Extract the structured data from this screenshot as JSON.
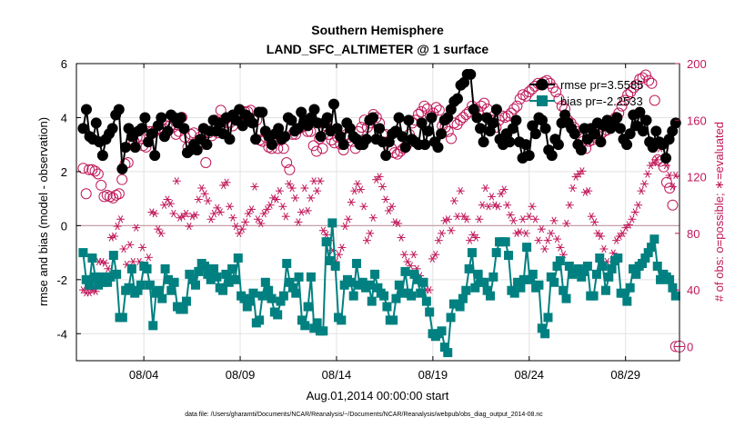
{
  "chart_data": {
    "type": "line",
    "title": "Southern Hemisphere",
    "subtitle": "LAND_SFC_ALTIMETER @ 1 surface",
    "xlabel": "Aug.01,2014 00:00:00 start",
    "ylabel": "rmse and bias (model - observation)",
    "y2label": "# of obs: o=possible; ∗=evaluated",
    "footnote": "data file: /Users/gharamti/Documents/NCAR/Reanalysis/~/Documents/NCAR/Reanalysis/webpub/obs_diag_output_2014-08.nc",
    "xlim": [
      0.5,
      31.8
    ],
    "ylim": [
      -5,
      6
    ],
    "y2lim": [
      -10,
      200
    ],
    "x_ticks": [
      4,
      9,
      14,
      19,
      24,
      29
    ],
    "x_tick_labels": [
      "08/04",
      "08/09",
      "08/14",
      "08/19",
      "08/24",
      "08/29"
    ],
    "y_ticks": [
      -4,
      -2,
      0,
      2,
      4,
      6
    ],
    "y_tick_labels": [
      "-4",
      "-2",
      "0",
      "2",
      "4",
      "6"
    ],
    "y2_ticks": [
      0,
      40,
      80,
      120,
      160,
      200
    ],
    "y2_tick_labels": [
      "0",
      "40",
      "80",
      "120",
      "160",
      "200"
    ],
    "grid": true,
    "legend_position": "top-right",
    "colors": {
      "rmse": "#000000",
      "bias": "#008080",
      "obs": "#c0185a",
      "zero_line": "#c8a0a8"
    },
    "series": [
      {
        "name": "rmse pr=3.5585",
        "axis": "left",
        "values": [
          3.6,
          4.3,
          3.3,
          3.2,
          3.8,
          3.1,
          2.6,
          3.2,
          3.4,
          3.6,
          4.1,
          4.3,
          2.1,
          2.9,
          3.6,
          3.3,
          2.9,
          3.5,
          3.6,
          4.0,
          3.1,
          3.4,
          2.6,
          3.7,
          4.0,
          3.3,
          3.5,
          4.1,
          4.0,
          3.8,
          4.0,
          3.6,
          2.7,
          2.8,
          3.0,
          2.8,
          3.2,
          3.6,
          3.0,
          3.5,
          3.9,
          3.5,
          3.8,
          3.4,
          4.0,
          3.2,
          4.1,
          3.9,
          4.3,
          3.7,
          4.1,
          4.0,
          3.8,
          3.2,
          4.2,
          4.2,
          3.5,
          3.3,
          3.0,
          3.4,
          3.6,
          3.2,
          3.3,
          4.0,
          3.9,
          3.5,
          3.6,
          4.2,
          3.9,
          3.7,
          4.0,
          4.3,
          3.8,
          3.3,
          3.8,
          4.0,
          3.5,
          4.5,
          3.6,
          3.3,
          3.0,
          3.8,
          3.6,
          3.3,
          3.2,
          3.0,
          3.0,
          3.2,
          3.9,
          4.0,
          3.2,
          3.6,
          3.1,
          2.6,
          3.1,
          3.4,
          3.5,
          4.0,
          3.3,
          2.9,
          3.9,
          3.2,
          3.1,
          3.0,
          3.8,
          3.0,
          3.5,
          4.0,
          3.1,
          2.9,
          3.4,
          3.9,
          4.0,
          4.3,
          4.6,
          4.7,
          5.2,
          5.3,
          5.6,
          5.6,
          4.3,
          4.0,
          3.6,
          3.1,
          4.0,
          3.5,
          3.8,
          4.3,
          3.2,
          3.0,
          3.4,
          3.1,
          3.6,
          3.9,
          3.1,
          2.5,
          3.0,
          2.6,
          3.7,
          3.4,
          4.0,
          3.9,
          3.6,
          2.8,
          2.6,
          3.2,
          3.0,
          3.8,
          4.1,
          3.8,
          3.6,
          3.4,
          3.0,
          2.8,
          3.6,
          3.2,
          3.6,
          3.4,
          3.8,
          3.1,
          3.7,
          3.9,
          3.6,
          3.7,
          4.0,
          3.6,
          3.2,
          3.0,
          3.4,
          4.1,
          3.7,
          4.2,
          3.5,
          3.9,
          3.1,
          2.9,
          3.5,
          3.1,
          3.0,
          2.5,
          3.2,
          3.5,
          3.8
        ]
      },
      {
        "name": "bias pr=-2.2533",
        "axis": "left",
        "values": [
          -1.0,
          -2.0,
          -2.2,
          -1.2,
          -1.9,
          -2.2,
          -1.9,
          -2.1,
          -2.1,
          -1.9,
          -1.1,
          -1.8,
          -3.4,
          -3.4,
          -2.4,
          -2.3,
          -1.6,
          -2.5,
          -2.4,
          -2.2,
          -1.5,
          -1.6,
          -2.2,
          -3.7,
          -2.5,
          -2.4,
          -2.7,
          -1.6,
          -2.0,
          -2.4,
          -2.1,
          -3.0,
          -3.1,
          -3.1,
          -2.8,
          -1.8,
          -2.0,
          -2.2,
          -1.7,
          -1.4,
          -1.5,
          -1.8,
          -2.0,
          -1.6,
          -1.9,
          -2.3,
          -2.4,
          -1.8,
          -2.1,
          -1.6,
          -2.0,
          -1.2,
          -2.6,
          -2.7,
          -3.0,
          -2.8,
          -2.5,
          -3.6,
          -3.5,
          -2.6,
          -2.1,
          -2.4,
          -2.7,
          -3.2,
          -3.3,
          -2.8,
          -2.6,
          -1.4,
          -2.1,
          -2.3,
          -2.5,
          -1.9,
          -3.5,
          -3.7,
          -3.0,
          -1.9,
          -3.8,
          -3.6,
          -3.9,
          -3.9,
          -0.6,
          -1.3,
          0.1,
          -1.5,
          -3.4,
          -3.5,
          -2.2,
          -2.0,
          -2.1,
          -2.6,
          -1.4,
          -2.2,
          -2.1,
          -2.3,
          -2.2,
          -2.8,
          -1.8,
          -2.3,
          -2.5,
          -2.6,
          -3.0,
          -3.5,
          -3.5,
          -2.7,
          -2.2,
          -2.5,
          -1.7,
          -2.5,
          -2.6,
          -1.8,
          -2.0,
          -2.5,
          -2.1,
          -2.8,
          -3.2,
          -4.0,
          -4.1,
          -4.0,
          -3.9,
          -4.5,
          -4.7,
          -3.4,
          -2.9,
          -2.9,
          -3.0,
          -2.7,
          -2.4,
          -1.6,
          -1.0,
          -2.3,
          -1.8,
          -2.1,
          -2.1,
          -2.4,
          -2.6,
          -1.9,
          -1.0,
          -0.6,
          -0.6,
          -0.6,
          -1.1,
          -2.4,
          -2.5,
          -2.1,
          -2.3,
          -2.0,
          -0.8,
          -2.0,
          -1.8,
          -2.3,
          -2.2,
          -3.8,
          -4.0,
          -3.4,
          -1.9,
          -2.1,
          -1.5,
          -1.3,
          -2.4,
          -2.7,
          -1.5,
          -1.8,
          -1.7,
          -1.6,
          -1.9,
          -1.7,
          -1.5,
          -2.6,
          -2.6,
          -1.8,
          -1.2,
          -1.5,
          -2.4,
          -1.9,
          -1.6,
          -1.3,
          -1.2,
          -2.5,
          -2.5,
          -2.8,
          -2.3,
          -1.6,
          -1.8,
          -1.5,
          -1.4,
          -1.2,
          -1.0,
          -0.8,
          -0.5,
          -1.5,
          -2.0,
          -1.8,
          -1.9,
          -2.0,
          -2.3,
          -2.6
        ]
      },
      {
        "name": "possible",
        "axis": "right",
        "values": [
          126,
          108,
          125,
          125,
          124,
          122,
          114,
          106,
          107,
          106,
          105,
          107,
          108,
          118,
          129,
          130,
          145,
          145,
          148,
          147,
          142,
          141,
          152,
          152,
          152,
          154,
          154,
          154,
          156,
          156,
          155,
          150,
          152,
          162,
          148,
          141,
          150,
          151,
          141,
          148,
          143,
          130,
          151,
          149,
          160,
          151,
          167,
          160,
          158,
          158,
          156,
          160,
          162,
          164,
          166,
          166,
          167,
          161,
          160,
          146,
          145,
          148,
          141,
          140,
          145,
          140,
          146,
          140,
          130,
          125,
          150,
          150,
          154,
          155,
          156,
          152,
          152,
          142,
          138,
          147,
          140,
          156,
          150,
          146,
          144,
          148,
          143,
          139,
          150,
          148,
          145,
          140,
          152,
          155,
          160,
          155,
          158,
          164,
          162,
          158,
          150,
          150,
          145,
          140,
          137,
          136,
          138,
          140,
          142,
          150,
          158,
          160,
          164,
          166,
          170,
          168,
          163,
          165,
          169,
          167,
          156,
          155,
          152,
          147,
          158,
          157,
          160,
          162,
          164,
          166,
          170,
          168,
          166,
          170,
          172,
          168,
          160,
          160,
          155,
          160,
          163,
          162,
          163,
          165,
          168,
          170,
          175,
          178,
          177,
          180,
          182,
          184,
          186,
          185,
          187,
          188,
          186,
          183,
          180,
          175,
          170,
          168,
          160,
          158,
          155,
          152,
          148,
          145,
          140,
          145,
          146,
          148,
          149,
          150,
          152,
          153,
          155,
          160,
          162,
          165,
          170,
          174,
          178,
          180,
          183,
          185,
          189,
          190,
          192,
          188,
          186,
          174,
          132,
          131,
          127,
          116,
          112,
          100,
          0
        ]
      },
      {
        "name": "evaluated",
        "axis": "right",
        "values": [
          40,
          38,
          38,
          40,
          39,
          60,
          60,
          59,
          55,
          77,
          78,
          85,
          90,
          69,
          58,
          72,
          60,
          84,
          60,
          70,
          56,
          63,
          95,
          94,
          83,
          80,
          100,
          104,
          101,
          94,
          117,
          91,
          92,
          94,
          85,
          92,
          93,
          104,
          112,
          108,
          103,
          90,
          94,
          98,
          95,
          114,
          116,
          99,
          91,
          85,
          80,
          83,
          88,
          94,
          97,
          113,
          90,
          87,
          94,
          97,
          100,
          105,
          104,
          110,
          99,
          92,
          115,
          112,
          105,
          88,
          95,
          112,
          96,
          105,
          117,
          110,
          117,
          82,
          79,
          75,
          68,
          60,
          65,
          70,
          85,
          90,
          102,
          110,
          115,
          111,
          99,
          75,
          80,
          91,
          118,
          120,
          113,
          104,
          96,
          99,
          88,
          87,
          77,
          65,
          60,
          57,
          65,
          55,
          50,
          45,
          40,
          40,
          62,
          65,
          75,
          80,
          89,
          90,
          82,
          103,
          92,
          110,
          92,
          90,
          75,
          79,
          77,
          90,
          100,
          112,
          99,
          106,
          100,
          99,
          108,
          111,
          100,
          93,
          89,
          80,
          81,
          90,
          80,
          92,
          99,
          90,
          75,
          83,
          69,
          75,
          80,
          89,
          76,
          70,
          65,
          87,
          100,
          112,
          120,
          122,
          124,
          109,
          110,
          92,
          88,
          80,
          78,
          69,
          60,
          56,
          66,
          75,
          78,
          80,
          84,
          86,
          90,
          95,
          100,
          110,
          115,
          122,
          128,
          130,
          132,
          140,
          145,
          128,
          121,
          113,
          121
        ]
      }
    ]
  }
}
